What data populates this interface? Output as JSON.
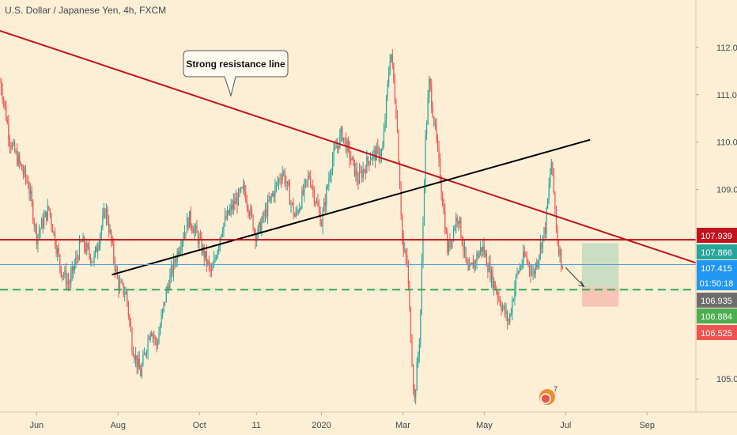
{
  "chart_data": {
    "type": "candlestick",
    "title": "U.S. Dollar / Japanese Yen, 4h, FXCM",
    "x_ticks": [
      "Jun",
      "Aug",
      "Oct",
      "11",
      "2020",
      "Mar",
      "May",
      "Jul",
      "Sep"
    ],
    "x_tick_months": [
      1,
      3,
      5,
      6.4,
      8,
      10,
      12,
      14,
      16
    ],
    "y_ticks": [
      105.0,
      109.0,
      110.0,
      111.0,
      112.0
    ],
    "ylim": [
      104.3,
      113.0
    ],
    "xlim": [
      0.1,
      17.2
    ],
    "path_points": [
      [
        0.0,
        111.6
      ],
      [
        0.15,
        111.1
      ],
      [
        0.35,
        110.0
      ],
      [
        0.55,
        109.6
      ],
      [
        0.8,
        109.1
      ],
      [
        1.0,
        108.0
      ],
      [
        1.3,
        108.6
      ],
      [
        1.6,
        107.3
      ],
      [
        1.8,
        107.0
      ],
      [
        2.1,
        107.9
      ],
      [
        2.4,
        107.5
      ],
      [
        2.7,
        108.6
      ],
      [
        3.0,
        107.0
      ],
      [
        3.2,
        106.8
      ],
      [
        3.35,
        105.7
      ],
      [
        3.55,
        105.1
      ],
      [
        3.8,
        106.1
      ],
      [
        3.95,
        105.7
      ],
      [
        4.2,
        106.9
      ],
      [
        4.5,
        107.8
      ],
      [
        4.75,
        108.4
      ],
      [
        5.0,
        107.9
      ],
      [
        5.3,
        107.2
      ],
      [
        5.55,
        108.2
      ],
      [
        5.85,
        108.7
      ],
      [
        6.1,
        109.0
      ],
      [
        6.4,
        108.0
      ],
      [
        6.75,
        108.8
      ],
      [
        7.05,
        109.4
      ],
      [
        7.35,
        108.4
      ],
      [
        7.7,
        109.3
      ],
      [
        8.0,
        108.3
      ],
      [
        8.25,
        109.6
      ],
      [
        8.5,
        110.2
      ],
      [
        8.9,
        109.2
      ],
      [
        9.2,
        109.7
      ],
      [
        9.5,
        109.8
      ],
      [
        9.7,
        112.0
      ],
      [
        9.85,
        110.5
      ],
      [
        10.0,
        107.7
      ],
      [
        10.1,
        107.5
      ],
      [
        10.28,
        104.5
      ],
      [
        10.42,
        106.0
      ],
      [
        10.55,
        110.0
      ],
      [
        10.65,
        111.3
      ],
      [
        10.8,
        110.2
      ],
      [
        10.95,
        109.0
      ],
      [
        11.1,
        107.7
      ],
      [
        11.35,
        108.5
      ],
      [
        11.6,
        107.2
      ],
      [
        11.95,
        107.8
      ],
      [
        12.2,
        107.1
      ],
      [
        12.45,
        106.5
      ],
      [
        12.6,
        106.2
      ],
      [
        12.8,
        107.2
      ],
      [
        13.0,
        107.6
      ],
      [
        13.2,
        107.2
      ],
      [
        13.5,
        108.2
      ],
      [
        13.65,
        109.6
      ],
      [
        13.8,
        107.9
      ],
      [
        13.92,
        107.4
      ]
    ],
    "lines": [
      {
        "name": "Strong resistance line",
        "color": "#c0131e",
        "from": [
          0.1,
          112.35
        ],
        "to": [
          17.2,
          107.45
        ]
      },
      {
        "name": "black-trendline",
        "color": "#000000",
        "from": [
          2.85,
          107.2
        ],
        "to": [
          14.6,
          110.05
        ]
      },
      {
        "name": "horizontal-resistance",
        "color": "#c0131e",
        "from": [
          0.1,
          107.939
        ],
        "to": [
          17.2,
          107.939
        ]
      },
      {
        "name": "green-dashed-support",
        "color": "#34a853",
        "from": [
          0.1,
          106.884
        ],
        "to": [
          17.2,
          106.884
        ]
      },
      {
        "name": "blue-current-price",
        "color": "#5b9bd5",
        "from": [
          0.1,
          107.415
        ],
        "to": [
          17.2,
          107.415
        ]
      }
    ],
    "position": {
      "entry": 106.935,
      "target": 107.866,
      "stop": 106.525,
      "x_from": 14.4,
      "x_to": 15.3
    },
    "arrow": {
      "from": [
        14.0,
        107.35
      ],
      "to": [
        14.45,
        106.95
      ]
    },
    "callout": "Strong resistance line",
    "price_badges": [
      {
        "value": "107.939",
        "color": "#c0131e"
      },
      {
        "value": "107.866",
        "color": "#26a69a"
      },
      {
        "value": "107.415",
        "color": "#2196f3"
      },
      {
        "value": "01:50:18",
        "color": "#2196f3"
      },
      {
        "value": "106.935",
        "color": "#6d6d6d"
      },
      {
        "value": "106.884",
        "color": "#4caf50"
      },
      {
        "value": "106.525",
        "color": "#ef5350"
      }
    ],
    "event_badge": "7"
  }
}
